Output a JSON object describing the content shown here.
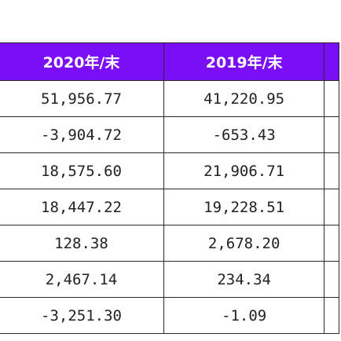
{
  "table": {
    "headers": [
      "2020年/末",
      "2019年/末"
    ],
    "rows": [
      [
        "51,956.77",
        "41,220.95"
      ],
      [
        "-3,904.72",
        "-653.43"
      ],
      [
        "18,575.60",
        "21,906.71"
      ],
      [
        "18,447.22",
        "19,228.51"
      ],
      [
        "128.38",
        "2,678.20"
      ],
      [
        "2,467.14",
        "234.34"
      ],
      [
        "-3,251.30",
        "-1.09"
      ]
    ]
  },
  "colors": {
    "header_background": "#7a0ff5",
    "header_text": "#ffffff",
    "border": "#2a2a2a"
  }
}
